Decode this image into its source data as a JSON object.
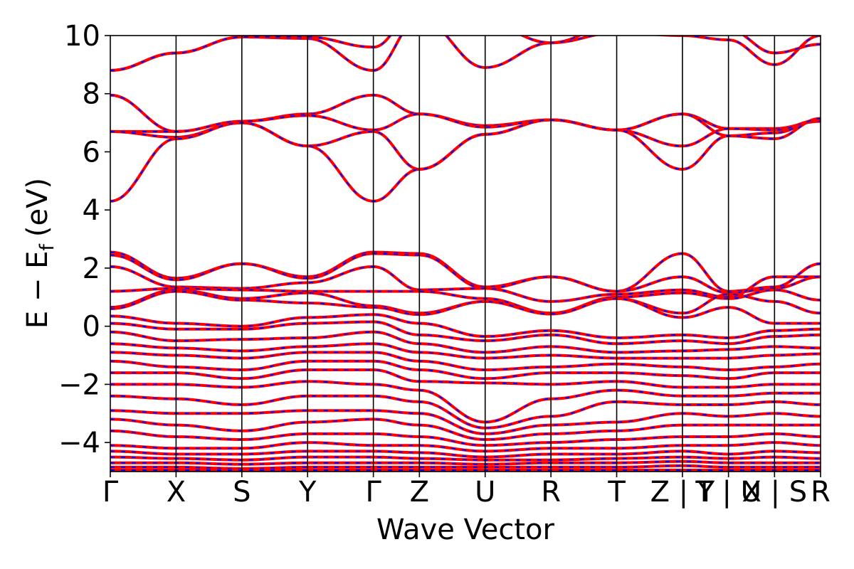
{
  "chart_data": {
    "type": "line",
    "title": "",
    "xlabel": "Wave Vector",
    "ylabel": "E − E",
    "ylabel_subscript": "f",
    "ylabel_unit": "(eV)",
    "ylim": [
      -5,
      10
    ],
    "yticks": [
      -4,
      -2,
      0,
      2,
      4,
      6,
      8,
      10
    ],
    "ytick_labels": [
      "−4",
      "−2",
      "0",
      "2",
      "4",
      "6",
      "8",
      "10"
    ],
    "kpath_positions": [
      0,
      1,
      2,
      3,
      4,
      4.7,
      5.7,
      6.7,
      7.7,
      8.7,
      9.4,
      10.1,
      10.8
    ],
    "kpath_labels": [
      "Γ",
      "X",
      "S",
      "Y",
      "Γ",
      "Z",
      "U",
      "R",
      "T",
      "Z | Y",
      "T | U",
      "X | S",
      "R"
    ],
    "grid": false,
    "line_colors": {
      "solid": "#ff0000",
      "dashed": "#0000ff"
    },
    "bands": [
      {
        "name": "b01",
        "y": [
          8.8,
          9.4,
          9.95,
          9.9,
          8.8,
          10.6,
          8.9,
          9.75,
          10.1,
          10.0,
          9.85,
          9.0,
          10.0
        ]
      },
      {
        "name": "b02",
        "y": [
          8.8,
          9.4,
          9.95,
          9.95,
          9.6,
          11.0,
          10.4,
          9.75,
          10.4,
          10.2,
          10.2,
          9.4,
          9.7
        ]
      },
      {
        "name": "b03",
        "y": [
          7.95,
          6.7,
          7.05,
          7.3,
          7.95,
          7.3,
          6.9,
          7.1,
          6.75,
          7.3,
          6.8,
          6.8,
          7.05
        ]
      },
      {
        "name": "b04",
        "y": [
          6.7,
          6.7,
          7.05,
          7.25,
          6.75,
          7.3,
          6.85,
          7.1,
          6.75,
          6.2,
          6.8,
          6.75,
          7.1
        ]
      },
      {
        "name": "b05",
        "y": [
          6.7,
          6.5,
          7.0,
          6.2,
          6.7,
          5.4,
          6.6,
          7.1,
          6.75,
          7.3,
          6.55,
          6.65,
          7.1
        ]
      },
      {
        "name": "b06",
        "y": [
          4.3,
          6.45,
          7.0,
          6.2,
          4.3,
          5.4,
          6.6,
          7.1,
          6.75,
          5.4,
          6.55,
          6.45,
          7.15
        ]
      },
      {
        "name": "b07",
        "y": [
          2.55,
          1.65,
          2.15,
          1.7,
          2.55,
          2.5,
          1.35,
          1.7,
          1.2,
          2.5,
          1.2,
          1.35,
          2.15
        ]
      },
      {
        "name": "b08",
        "y": [
          2.45,
          1.6,
          2.15,
          1.65,
          2.5,
          2.45,
          1.3,
          1.7,
          1.2,
          1.7,
          1.15,
          1.3,
          1.7
        ]
      },
      {
        "name": "b09",
        "y": [
          2.05,
          1.35,
          1.3,
          1.5,
          2.05,
          1.25,
          1.3,
          0.85,
          1.1,
          1.25,
          1.0,
          1.7,
          1.7
        ]
      },
      {
        "name": "b10",
        "y": [
          1.2,
          1.3,
          1.25,
          1.2,
          1.2,
          1.2,
          0.95,
          0.45,
          1.0,
          1.15,
          0.95,
          1.25,
          0.9
        ]
      },
      {
        "name": "b11",
        "y": [
          0.65,
          1.25,
          0.95,
          1.15,
          0.7,
          0.45,
          0.85,
          0.45,
          0.95,
          0.45,
          1.1,
          0.85,
          0.45
        ]
      },
      {
        "name": "b12",
        "y": [
          0.6,
          1.2,
          0.9,
          0.8,
          0.65,
          0.4,
          0.85,
          0.42,
          0.95,
          0.3,
          0.65,
          0.1,
          0.1
        ]
      },
      {
        "name": "b13",
        "y": [
          0.35,
          0.1,
          0.0,
          0.3,
          0.4,
          0.1,
          -0.35,
          -0.15,
          -0.4,
          -0.3,
          -0.4,
          -0.15,
          -0.1
        ]
      },
      {
        "name": "b14",
        "y": [
          0.1,
          -0.1,
          -0.1,
          0.1,
          0.15,
          -0.3,
          -0.5,
          -0.3,
          -0.6,
          -0.5,
          -0.6,
          -0.35,
          -0.3
        ]
      },
      {
        "name": "b15",
        "y": [
          -0.2,
          -0.5,
          -0.45,
          -0.4,
          -0.2,
          -0.6,
          -0.9,
          -0.7,
          -0.9,
          -0.85,
          -0.8,
          -0.7,
          -0.75
        ]
      },
      {
        "name": "b16",
        "y": [
          -0.6,
          -0.75,
          -0.85,
          -0.7,
          -0.6,
          -0.9,
          -1.1,
          -1.0,
          -1.1,
          -1.1,
          -1.1,
          -1.0,
          -0.95
        ]
      },
      {
        "name": "b17",
        "y": [
          -0.9,
          -1.0,
          -1.1,
          -0.9,
          -0.9,
          -1.2,
          -1.5,
          -1.4,
          -1.3,
          -1.4,
          -1.5,
          -1.4,
          -1.3
        ]
      },
      {
        "name": "b18",
        "y": [
          -1.2,
          -1.4,
          -1.5,
          -1.2,
          -1.2,
          -1.5,
          -1.8,
          -1.6,
          -1.6,
          -1.7,
          -1.8,
          -1.6,
          -1.6
        ]
      },
      {
        "name": "b19",
        "y": [
          -1.6,
          -1.6,
          -1.8,
          -1.5,
          -1.5,
          -1.9,
          -1.95,
          -2.0,
          -1.9,
          -2.1,
          -2.1,
          -2.0,
          -2.0
        ]
      },
      {
        "name": "b20",
        "y": [
          -2.0,
          -2.0,
          -2.1,
          -1.9,
          -2.0,
          -2.2,
          -3.3,
          -2.5,
          -2.2,
          -2.4,
          -2.4,
          -2.3,
          -2.3
        ]
      },
      {
        "name": "b21",
        "y": [
          -2.4,
          -2.5,
          -2.7,
          -2.4,
          -2.4,
          -2.6,
          -3.5,
          -3.1,
          -2.6,
          -2.7,
          -2.7,
          -2.6,
          -2.7
        ]
      },
      {
        "name": "b22",
        "y": [
          -2.9,
          -3.0,
          -3.0,
          -2.9,
          -2.9,
          -3.0,
          -3.7,
          -3.4,
          -3.3,
          -3.0,
          -3.1,
          -3.0,
          -3.1
        ]
      },
      {
        "name": "b23",
        "y": [
          -3.2,
          -3.4,
          -3.6,
          -3.3,
          -3.2,
          -3.4,
          -3.9,
          -3.7,
          -3.6,
          -3.4,
          -3.4,
          -3.4,
          -3.4
        ]
      },
      {
        "name": "b24",
        "y": [
          -3.6,
          -3.8,
          -3.9,
          -3.7,
          -3.7,
          -3.8,
          -4.1,
          -4.0,
          -3.9,
          -3.8,
          -3.8,
          -3.7,
          -3.8
        ]
      },
      {
        "name": "b25",
        "y": [
          -4.1,
          -4.2,
          -4.2,
          -4.0,
          -4.1,
          -4.1,
          -4.3,
          -4.2,
          -4.2,
          -4.1,
          -4.1,
          -4.0,
          -4.1
        ]
      },
      {
        "name": "b26",
        "y": [
          -4.3,
          -4.4,
          -4.4,
          -4.3,
          -4.3,
          -4.35,
          -4.5,
          -4.4,
          -4.4,
          -4.3,
          -4.4,
          -4.3,
          -4.35
        ]
      },
      {
        "name": "b27",
        "y": [
          -4.5,
          -4.55,
          -4.6,
          -4.5,
          -4.5,
          -4.55,
          -4.6,
          -4.6,
          -4.55,
          -4.5,
          -4.55,
          -4.5,
          -4.55
        ]
      },
      {
        "name": "b28",
        "y": [
          -4.7,
          -4.7,
          -4.75,
          -4.7,
          -4.7,
          -4.7,
          -4.75,
          -4.7,
          -4.7,
          -4.65,
          -4.7,
          -4.7,
          -4.7
        ]
      },
      {
        "name": "b29",
        "y": [
          -4.85,
          -4.85,
          -4.9,
          -4.85,
          -4.85,
          -4.85,
          -4.85,
          -4.85,
          -4.85,
          -4.8,
          -4.85,
          -4.85,
          -4.85
        ]
      },
      {
        "name": "b30",
        "y": [
          -4.95,
          -4.95,
          -4.95,
          -4.95,
          -4.95,
          -4.95,
          -4.95,
          -4.95,
          -4.95,
          -4.95,
          -4.95,
          -4.95,
          -4.95
        ]
      }
    ]
  }
}
